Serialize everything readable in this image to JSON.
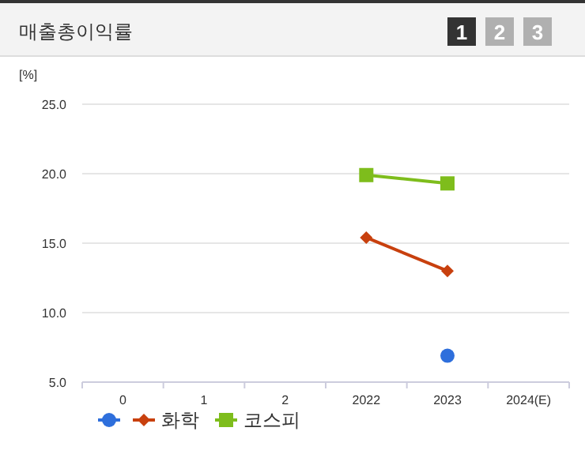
{
  "chart_data": {
    "type": "line",
    "title": "매출총이익률",
    "ylabel": "[%]",
    "annotations": [
      "1",
      "2",
      "3"
    ],
    "categories": [
      "0",
      "1",
      "2",
      "2022",
      "2023",
      "2024(E)"
    ],
    "series": [
      {
        "color": "#2e6fdc",
        "marker": "circle",
        "values": [
          null,
          null,
          null,
          null,
          6.9,
          null
        ]
      },
      {
        "name": "화학",
        "color": "#c8400e",
        "marker": "diamond",
        "values": [
          null,
          null,
          null,
          15.4,
          13.0,
          null
        ]
      },
      {
        "name": "코스피",
        "color": "#7ebd1c",
        "marker": "square",
        "values": [
          null,
          null,
          null,
          19.9,
          19.3,
          null
        ]
      }
    ],
    "ylim": [
      5,
      25
    ],
    "yticks": [
      {
        "value": 5,
        "label": "5.0"
      },
      {
        "value": 10,
        "label": "10.0"
      },
      {
        "value": 15,
        "label": "15.0"
      },
      {
        "value": 20,
        "label": "20.0"
      },
      {
        "value": 25,
        "label": "25.0"
      }
    ],
    "grid": "y",
    "legend": "bottom"
  }
}
